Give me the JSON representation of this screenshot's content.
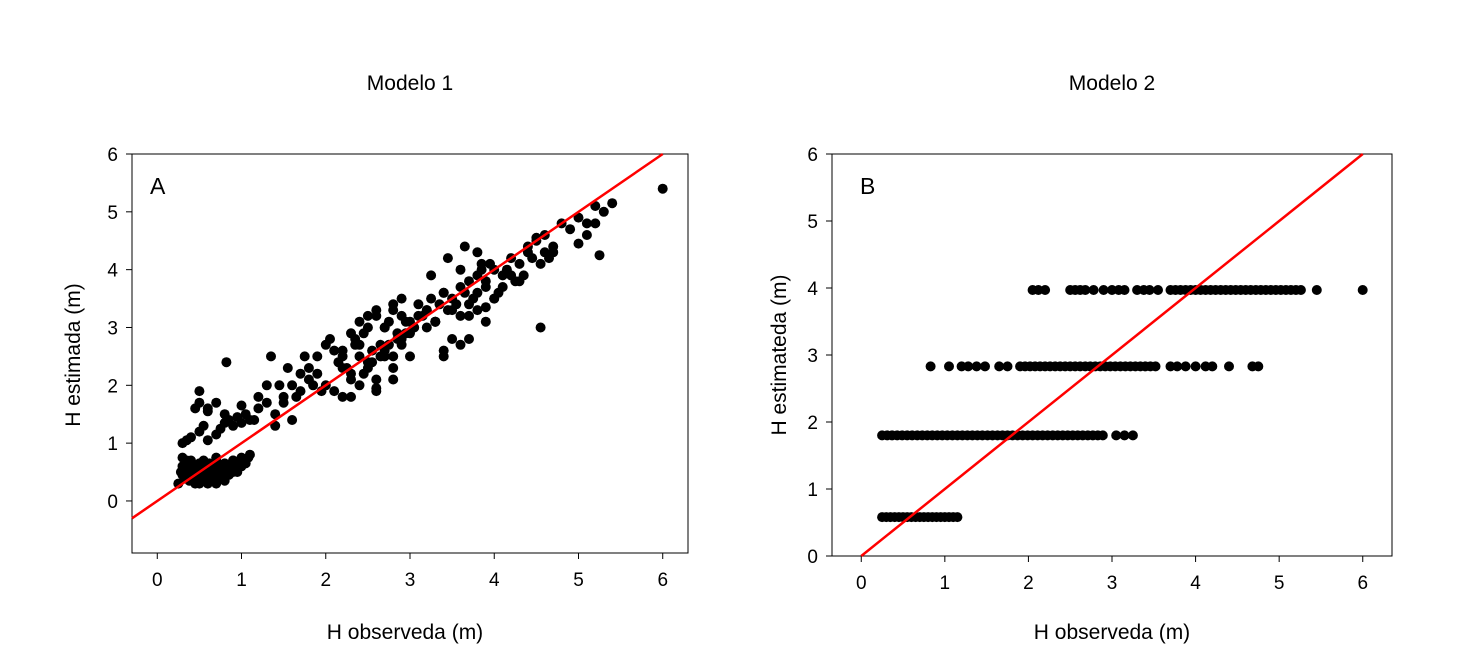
{
  "chart_data": [
    {
      "type": "scatter",
      "panel_letter": "A",
      "title": "Modelo 1",
      "xlabel": "H observeda (m)",
      "ylabel": "H estimada (m)",
      "xlim": [
        -0.3,
        6.3
      ],
      "ylim": [
        -0.9,
        6
      ],
      "xticks": [
        0,
        1,
        2,
        3,
        4,
        5,
        6
      ],
      "yticks": [
        0,
        1,
        2,
        3,
        4,
        5,
        6
      ],
      "grid": false,
      "reference_line": {
        "slope": 1,
        "intercept": 0,
        "color": "#ff0000"
      },
      "points": {
        "x": [
          0.25,
          0.28,
          0.3,
          0.32,
          0.35,
          0.38,
          0.4,
          0.42,
          0.45,
          0.48,
          0.5,
          0.52,
          0.55,
          0.58,
          0.6,
          0.62,
          0.65,
          0.68,
          0.7,
          0.72,
          0.75,
          0.78,
          0.8,
          0.82,
          0.85,
          0.88,
          0.9,
          0.92,
          0.95,
          0.98,
          1.0,
          1.02,
          1.05,
          1.08,
          1.1,
          0.3,
          0.4,
          0.5,
          0.6,
          0.7,
          0.8,
          0.9,
          1.0,
          0.35,
          0.45,
          0.55,
          0.65,
          0.75,
          0.85,
          0.95,
          0.3,
          0.5,
          0.7,
          0.9,
          0.4,
          0.6,
          0.8,
          0.35,
          0.45,
          0.55,
          0.65,
          0.75,
          0.85,
          0.5,
          0.7,
          0.6,
          0.3,
          0.35,
          0.4,
          0.5,
          0.55,
          0.6,
          0.7,
          0.75,
          0.8,
          0.85,
          0.9,
          1.0,
          1.05,
          1.1,
          0.45,
          0.5,
          0.6,
          0.8,
          1.0,
          0.5,
          0.6,
          0.7,
          0.82,
          0.95,
          1.15,
          1.2,
          1.3,
          1.4,
          1.5,
          1.6,
          1.7,
          1.8,
          1.9,
          1.35,
          1.45,
          1.55,
          1.65,
          1.75,
          1.85,
          1.95,
          1.4,
          1.5,
          1.6,
          1.2,
          1.3,
          1.7,
          1.8,
          1.9,
          2.0,
          2.05,
          2.1,
          2.15,
          2.2,
          2.25,
          2.3,
          2.35,
          2.4,
          2.45,
          2.5,
          2.55,
          2.6,
          2.65,
          2.7,
          2.75,
          2.8,
          2.85,
          2.9,
          2.95,
          3.0,
          2.0,
          2.1,
          2.2,
          2.3,
          2.4,
          2.5,
          2.6,
          2.7,
          2.8,
          2.9,
          3.0,
          2.2,
          2.3,
          2.4,
          2.5,
          2.6,
          2.7,
          2.8,
          2.9,
          2.35,
          2.45,
          2.55,
          2.65,
          2.75,
          2.85,
          2.95,
          2.2,
          2.4,
          2.6,
          2.8,
          2.5,
          2.7,
          2.9,
          2.3,
          2.6,
          2.8,
          3.05,
          3.1,
          3.15,
          3.2,
          3.25,
          3.3,
          3.35,
          3.4,
          3.45,
          3.5,
          3.55,
          3.6,
          3.65,
          3.7,
          3.75,
          3.8,
          3.85,
          3.9,
          3.95,
          4.0,
          3.1,
          3.2,
          3.3,
          3.4,
          3.5,
          3.6,
          3.7,
          3.8,
          3.9,
          4.0,
          3.2,
          3.4,
          3.6,
          3.8,
          3.3,
          3.5,
          3.7,
          3.9,
          3.25,
          3.45,
          3.65,
          3.85,
          3.0,
          3.4,
          3.6,
          3.8,
          4.05,
          4.1,
          4.15,
          4.2,
          4.25,
          4.3,
          4.35,
          4.4,
          4.45,
          4.5,
          4.55,
          4.6,
          4.65,
          4.7,
          4.1,
          4.2,
          4.3,
          4.4,
          4.5,
          4.6,
          4.7,
          4.8,
          4.9,
          5.0,
          5.1,
          5.2,
          5.3,
          5.4,
          5.0,
          5.1,
          5.2,
          5.25,
          4.55,
          6.0,
          4.0,
          3.9,
          3.7
        ],
        "y": [
          0.3,
          0.5,
          0.45,
          0.4,
          0.55,
          0.35,
          0.5,
          0.6,
          0.45,
          0.4,
          0.55,
          0.35,
          0.5,
          0.6,
          0.45,
          0.65,
          0.4,
          0.55,
          0.5,
          0.6,
          0.45,
          0.55,
          0.65,
          0.5,
          0.6,
          0.55,
          0.7,
          0.6,
          0.65,
          0.7,
          0.75,
          0.7,
          0.65,
          0.75,
          0.8,
          0.6,
          0.7,
          0.4,
          0.3,
          0.7,
          0.4,
          0.5,
          0.6,
          0.7,
          0.3,
          0.45,
          0.35,
          0.55,
          0.45,
          0.5,
          0.75,
          0.65,
          0.75,
          0.7,
          0.65,
          0.6,
          0.35,
          0.45,
          0.55,
          0.7,
          0.5,
          0.4,
          0.6,
          0.3,
          0.3,
          0.55,
          1.0,
          1.05,
          1.1,
          1.2,
          1.3,
          1.05,
          1.15,
          1.25,
          1.35,
          1.4,
          1.3,
          1.35,
          1.5,
          1.4,
          1.6,
          1.7,
          1.6,
          1.5,
          1.65,
          1.9,
          1.55,
          1.7,
          2.4,
          1.45,
          1.4,
          1.6,
          1.7,
          1.5,
          1.8,
          2.0,
          1.9,
          2.1,
          2.2,
          2.5,
          2.0,
          2.3,
          1.8,
          2.5,
          2.0,
          1.9,
          1.3,
          1.7,
          1.4,
          1.8,
          2.0,
          2.2,
          2.3,
          2.5,
          2.7,
          2.8,
          2.6,
          2.4,
          2.5,
          2.3,
          2.1,
          2.8,
          2.5,
          2.9,
          3.0,
          2.6,
          3.2,
          2.7,
          3.0,
          3.1,
          3.3,
          2.8,
          3.2,
          2.9,
          3.1,
          2.0,
          1.9,
          1.8,
          2.2,
          2.0,
          2.4,
          2.1,
          2.6,
          2.3,
          2.8,
          2.5,
          2.6,
          2.9,
          3.1,
          3.2,
          3.3,
          3.0,
          3.4,
          3.5,
          2.7,
          2.2,
          2.4,
          2.5,
          2.7,
          2.9,
          3.1,
          2.3,
          2.7,
          1.9,
          2.1,
          2.3,
          2.5,
          2.7,
          1.8,
          1.95,
          2.5,
          3.0,
          3.4,
          3.2,
          3.3,
          3.5,
          3.1,
          3.4,
          3.6,
          3.3,
          3.5,
          3.4,
          3.7,
          3.6,
          3.8,
          3.5,
          3.9,
          4.0,
          3.7,
          4.1,
          4.0,
          3.2,
          3.0,
          3.1,
          2.6,
          2.8,
          3.2,
          3.4,
          3.6,
          3.8,
          3.5,
          3.3,
          3.6,
          4.0,
          4.3,
          3.1,
          3.3,
          2.8,
          3.1,
          3.9,
          4.2,
          4.4,
          4.1,
          2.9,
          2.5,
          2.7,
          3.3,
          3.6,
          3.9,
          4.0,
          4.2,
          3.8,
          4.1,
          3.9,
          4.3,
          4.2,
          4.5,
          4.1,
          4.3,
          4.2,
          4.4,
          3.7,
          3.9,
          3.8,
          4.4,
          4.55,
          4.6,
          4.3,
          4.8,
          4.7,
          4.9,
          4.8,
          5.1,
          5.0,
          5.15,
          4.45,
          4.6,
          4.8,
          4.25,
          3.0,
          5.4,
          3.5,
          3.35,
          3.2
        ]
      }
    },
    {
      "type": "scatter",
      "panel_letter": "B",
      "title": "Modelo 2",
      "xlabel": "H observeda (m)",
      "ylabel": "H estimateda (m)",
      "xlim": [
        -0.35,
        6.35
      ],
      "ylim": [
        0,
        6
      ],
      "xticks": [
        0,
        1,
        2,
        3,
        4,
        5,
        6
      ],
      "yticks": [
        0,
        1,
        2,
        3,
        4,
        5,
        6
      ],
      "grid": false,
      "reference_line": {
        "slope": 1,
        "intercept": 0,
        "color": "#ff0000"
      },
      "levels": [
        {
          "y": 0.58,
          "x_min": 0.25,
          "x_max": 1.15,
          "step": 0.05,
          "extra_x": []
        },
        {
          "y": 1.8,
          "x_min": 0.25,
          "x_max": 2.9,
          "step": 0.06,
          "extra_x": [
            3.05,
            3.15,
            3.25
          ]
        },
        {
          "y": 2.83,
          "x_min": 1.9,
          "x_max": 3.55,
          "step": 0.06,
          "extra_x": [
            0.83,
            1.05,
            1.2,
            1.28,
            1.38,
            1.48,
            1.65,
            1.75,
            3.7,
            3.78,
            3.88,
            4.0,
            4.12,
            4.2,
            4.4,
            4.68,
            4.75
          ]
        },
        {
          "y": 3.97,
          "x_min": 3.7,
          "x_max": 5.3,
          "step": 0.06,
          "extra_x": [
            2.05,
            2.12,
            2.2,
            2.5,
            2.56,
            2.62,
            2.68,
            2.78,
            2.9,
            3.0,
            3.08,
            3.15,
            3.3,
            3.38,
            3.45,
            3.55,
            5.45,
            6.0
          ]
        }
      ]
    }
  ]
}
